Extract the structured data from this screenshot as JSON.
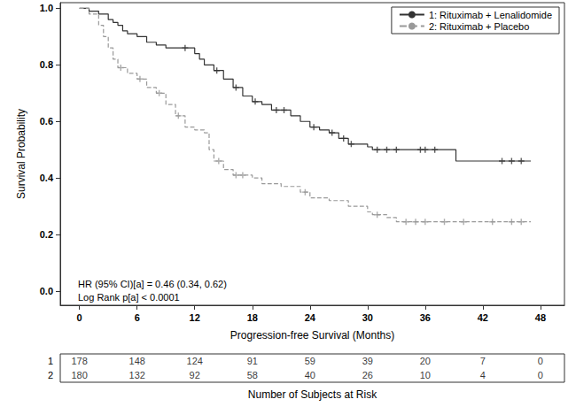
{
  "chart_data": {
    "type": "line",
    "x_label": "Progression-free Survival (Months)",
    "y_label": "Survival Probability",
    "xlim": [
      -2,
      50.5
    ],
    "xticks": [
      0,
      6,
      12,
      18,
      24,
      30,
      36,
      42,
      48
    ],
    "ylim": [
      -0.05,
      1.02
    ],
    "yticks": [
      {
        "value": 0,
        "label": "0.0"
      },
      {
        "value": 0.2,
        "label": "0.2"
      },
      {
        "value": 0.4,
        "label": "0.4"
      },
      {
        "value": 0.6,
        "label": "0.6"
      },
      {
        "value": 0.8,
        "label": "0.8"
      },
      {
        "value": 1,
        "label": "1.0"
      }
    ],
    "grid": false,
    "legend": "top-right",
    "annotations": [
      "HR (95% CI)[a] = 0.46 (0.34, 0.62)",
      "Log Rank p[a] < 0.0001"
    ],
    "series": [
      {
        "name": "1: Rituximab + Lenalidomide",
        "color": "#333333",
        "line_style": "solid",
        "marker": "plus",
        "x": [
          0,
          1,
          2,
          3,
          3.5,
          4,
          4.5,
          5,
          6,
          7,
          8,
          9,
          12,
          12.5,
          13,
          14,
          15,
          16,
          17,
          18,
          19,
          20,
          22,
          23,
          24,
          25,
          26,
          27,
          28,
          30,
          30.5,
          39.2,
          47
        ],
        "values": [
          1.0,
          0.99,
          0.98,
          0.96,
          0.95,
          0.94,
          0.92,
          0.91,
          0.9,
          0.88,
          0.87,
          0.86,
          0.84,
          0.82,
          0.8,
          0.78,
          0.75,
          0.72,
          0.69,
          0.67,
          0.66,
          0.64,
          0.62,
          0.6,
          0.58,
          0.57,
          0.56,
          0.54,
          0.52,
          0.51,
          0.5,
          0.46,
          0.46
        ],
        "censored": [
          [
            11,
            0.86
          ],
          [
            14.3,
            0.78
          ],
          [
            16.3,
            0.72
          ],
          [
            18.3,
            0.67
          ],
          [
            20.5,
            0.64
          ],
          [
            21.3,
            0.64
          ],
          [
            24.4,
            0.58
          ],
          [
            26.3,
            0.56
          ],
          [
            27.5,
            0.54
          ],
          [
            28.3,
            0.52
          ],
          [
            31,
            0.5
          ],
          [
            32,
            0.5
          ],
          [
            33,
            0.5
          ],
          [
            35.5,
            0.5
          ],
          [
            36,
            0.5
          ],
          [
            37,
            0.5
          ],
          [
            44,
            0.46
          ],
          [
            45,
            0.46
          ],
          [
            46,
            0.46
          ]
        ]
      },
      {
        "name": "2: Rituximab + Placebo",
        "color": "#999999",
        "line_style": "dashed",
        "marker": "plus",
        "x": [
          0,
          1,
          2,
          2.5,
          3,
          3.5,
          4,
          5,
          6,
          7,
          8,
          9,
          10,
          11,
          12,
          13,
          13.5,
          14,
          15,
          16,
          18,
          19,
          21,
          23,
          24,
          26,
          28,
          30,
          30.5,
          32,
          33,
          47
        ],
        "values": [
          1.0,
          0.98,
          0.94,
          0.9,
          0.86,
          0.82,
          0.79,
          0.77,
          0.75,
          0.72,
          0.7,
          0.66,
          0.62,
          0.58,
          0.57,
          0.56,
          0.5,
          0.46,
          0.43,
          0.41,
          0.4,
          0.38,
          0.37,
          0.35,
          0.33,
          0.32,
          0.3,
          0.28,
          0.27,
          0.26,
          0.245,
          0.245
        ],
        "censored": [
          [
            4.3,
            0.79
          ],
          [
            6.3,
            0.75
          ],
          [
            8.3,
            0.7
          ],
          [
            10.3,
            0.62
          ],
          [
            14.5,
            0.46
          ],
          [
            16.3,
            0.41
          ],
          [
            17,
            0.41
          ],
          [
            23.5,
            0.35
          ],
          [
            31,
            0.27
          ],
          [
            34,
            0.245
          ],
          [
            35,
            0.245
          ],
          [
            36,
            0.245
          ],
          [
            38,
            0.245
          ],
          [
            40,
            0.245
          ],
          [
            43,
            0.245
          ],
          [
            45,
            0.245
          ],
          [
            46,
            0.245
          ]
        ]
      }
    ],
    "at_risk": {
      "title": "Number of Subjects at Risk",
      "x": [
        0,
        6,
        12,
        18,
        24,
        30,
        36,
        42,
        48
      ],
      "rows": [
        {
          "label": "1",
          "values": [
            178,
            148,
            124,
            91,
            59,
            39,
            20,
            7,
            0
          ]
        },
        {
          "label": "2",
          "values": [
            180,
            132,
            92,
            58,
            40,
            26,
            10,
            4,
            0
          ]
        }
      ]
    }
  }
}
